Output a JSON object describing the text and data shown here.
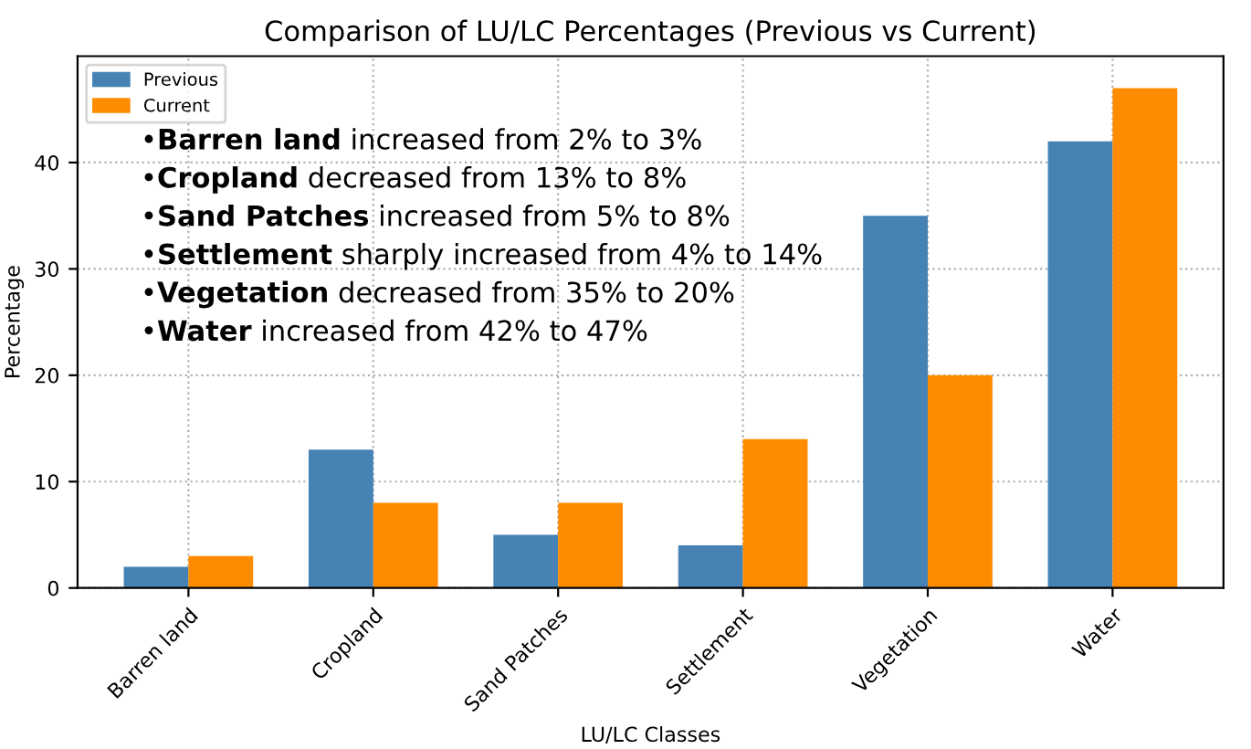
{
  "chart_data": {
    "type": "bar",
    "title": "Comparison of LU/LC Percentages (Previous vs Current)",
    "xlabel": "LU/LC Classes",
    "ylabel": "Percentage",
    "categories": [
      "Barren land",
      "Cropland",
      "Sand Patches",
      "Settlement",
      "Vegetation",
      "Water"
    ],
    "series": [
      {
        "name": "Previous",
        "color": "#4682b4",
        "values": [
          2,
          13,
          5,
          4,
          35,
          42
        ]
      },
      {
        "name": "Current",
        "color": "#ff8c00",
        "values": [
          3,
          8,
          8,
          14,
          20,
          47
        ]
      }
    ],
    "ylim": [
      0,
      50
    ],
    "yticks": [
      0,
      10,
      20,
      30,
      40
    ],
    "grid": true,
    "legend": "top left",
    "annotations": [
      "•Barren land increased from 2% to 3%",
      "•Cropland decreased from 13% to 8%",
      "•Sand Patches increased from 5% to 8%",
      "•Settlement sharply increased from 4% to 14%",
      "•Vegetation decreased from 35% to 20%",
      "•Water increased from 42% to 47%"
    ]
  }
}
